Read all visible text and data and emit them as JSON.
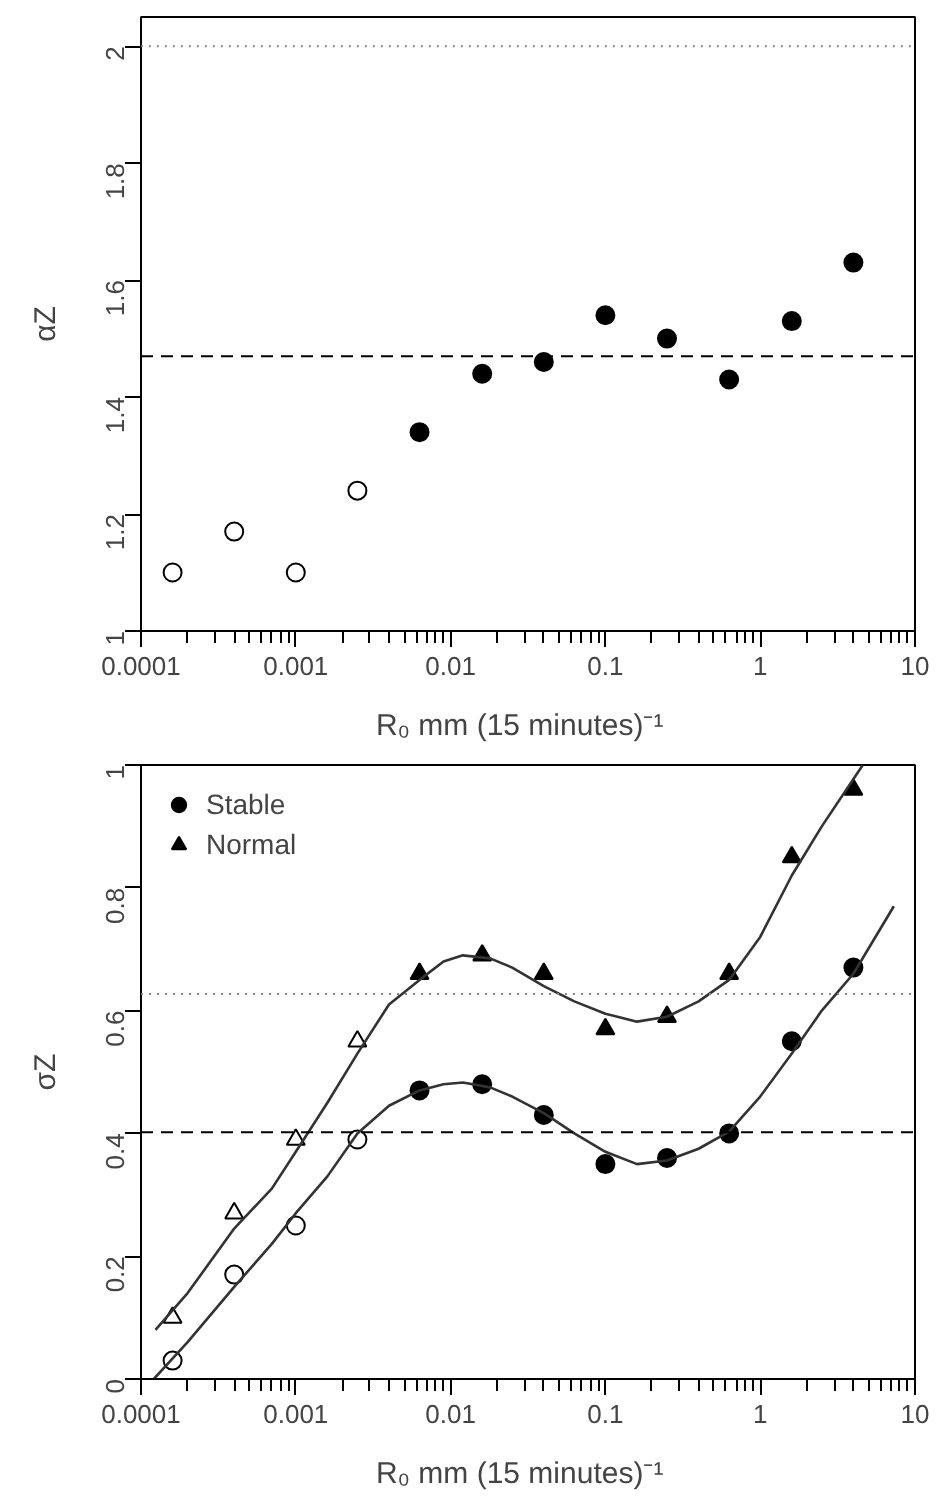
{
  "chart_data": [
    {
      "type": "scatter",
      "xlabel": "R₀   mm (15 minutes)⁻¹",
      "ylabel": "αZ",
      "log": "x",
      "grid": false,
      "legend": false,
      "xlim": [
        0.0001,
        10
      ],
      "xticks": [
        0.0001,
        0.001,
        0.01,
        0.1,
        1,
        10
      ],
      "ylim": [
        1,
        2.05
      ],
      "yticks": [
        1,
        1.2,
        1.4,
        1.6,
        1.8,
        2
      ],
      "series": [
        {
          "color": "#ffffff",
          "marker": "circle",
          "x": [
            0.00016,
            0.0004,
            0.001,
            0.0025
          ],
          "values": [
            1.1,
            1.17,
            1.1,
            1.24
          ]
        },
        {
          "color": "#000000",
          "marker": "circle",
          "x": [
            0.0063,
            0.016,
            0.04,
            0.1,
            0.25,
            0.63,
            1.6,
            4
          ],
          "values": [
            1.34,
            1.44,
            1.46,
            1.54,
            1.5,
            1.43,
            1.53,
            1.63
          ]
        }
      ],
      "ref_lines": [
        {
          "axis": "y",
          "value": 1.47,
          "line_style": "dashed",
          "color": "#000000"
        },
        {
          "axis": "y",
          "value": 2,
          "line_style": "dotted",
          "color": "#888888"
        }
      ]
    },
    {
      "type": "scatter",
      "xlabel": "R₀   mm (15 minutes)⁻¹",
      "ylabel": "σZ",
      "log": "x",
      "grid": false,
      "legend": "top left",
      "xlim": [
        0.0001,
        10
      ],
      "xticks": [
        0.0001,
        0.001,
        0.01,
        0.1,
        1,
        10
      ],
      "ylim": [
        0,
        1
      ],
      "yticks": [
        0,
        0.2,
        0.4,
        0.6,
        0.8,
        1
      ],
      "series": [
        {
          "name": "Stable",
          "color": "#000000",
          "marker": "circle",
          "x": [
            0.0063,
            0.016,
            0.04,
            0.1,
            0.25,
            0.63,
            1.6,
            4
          ],
          "values": [
            0.47,
            0.48,
            0.43,
            0.35,
            0.36,
            0.4,
            0.55,
            0.67
          ]
        },
        {
          "name": "Normal",
          "color": "#000000",
          "marker": "triangle",
          "x": [
            0.0063,
            0.016,
            0.04,
            0.1,
            0.25,
            0.63,
            1.6,
            4
          ],
          "values": [
            0.66,
            0.69,
            0.66,
            0.57,
            0.59,
            0.66,
            0.85,
            0.96
          ]
        },
        {
          "color": "#ffffff",
          "marker": "circle",
          "x": [
            0.00016,
            0.0004,
            0.001,
            0.0025
          ],
          "values": [
            0.03,
            0.17,
            0.25,
            0.39
          ]
        },
        {
          "color": "#ffffff",
          "marker": "triangle",
          "x": [
            0.00016,
            0.0004,
            0.001,
            0.0025
          ],
          "values": [
            0.1,
            0.27,
            0.39,
            0.55
          ]
        },
        {
          "type": "line",
          "color": "#333333",
          "x": [
            0.000121,
            0.0002,
            0.0004,
            0.0007,
            0.001,
            0.0016,
            0.0025,
            0.004,
            0.0063,
            0.009,
            0.012,
            0.018,
            0.025,
            0.04,
            0.063,
            0.1,
            0.16,
            0.25,
            0.4,
            0.63,
            1.0,
            1.6,
            2.5,
            4,
            7.3
          ],
          "values": [
            0.0,
            0.06,
            0.15,
            0.22,
            0.27,
            0.33,
            0.4,
            0.445,
            0.47,
            0.48,
            0.483,
            0.475,
            0.46,
            0.433,
            0.4,
            0.37,
            0.35,
            0.356,
            0.375,
            0.403,
            0.46,
            0.53,
            0.6,
            0.66,
            0.77
          ]
        },
        {
          "type": "line",
          "color": "#333333",
          "x": [
            0.000124,
            0.0002,
            0.0004,
            0.0007,
            0.001,
            0.0016,
            0.0025,
            0.004,
            0.0063,
            0.009,
            0.012,
            0.018,
            0.025,
            0.04,
            0.063,
            0.1,
            0.16,
            0.25,
            0.4,
            0.63,
            1.0,
            1.6,
            2.5,
            4.6
          ],
          "values": [
            0.08,
            0.14,
            0.245,
            0.31,
            0.37,
            0.45,
            0.53,
            0.61,
            0.65,
            0.68,
            0.69,
            0.685,
            0.67,
            0.64,
            0.615,
            0.595,
            0.582,
            0.59,
            0.615,
            0.65,
            0.72,
            0.82,
            0.9,
            1.0
          ]
        }
      ],
      "ref_lines": [
        {
          "axis": "y",
          "value": 0.627,
          "line_style": "dotted",
          "color": "#888888"
        },
        {
          "axis": "y",
          "value": 0.402,
          "line_style": "dashed",
          "color": "#000000"
        }
      ]
    }
  ]
}
